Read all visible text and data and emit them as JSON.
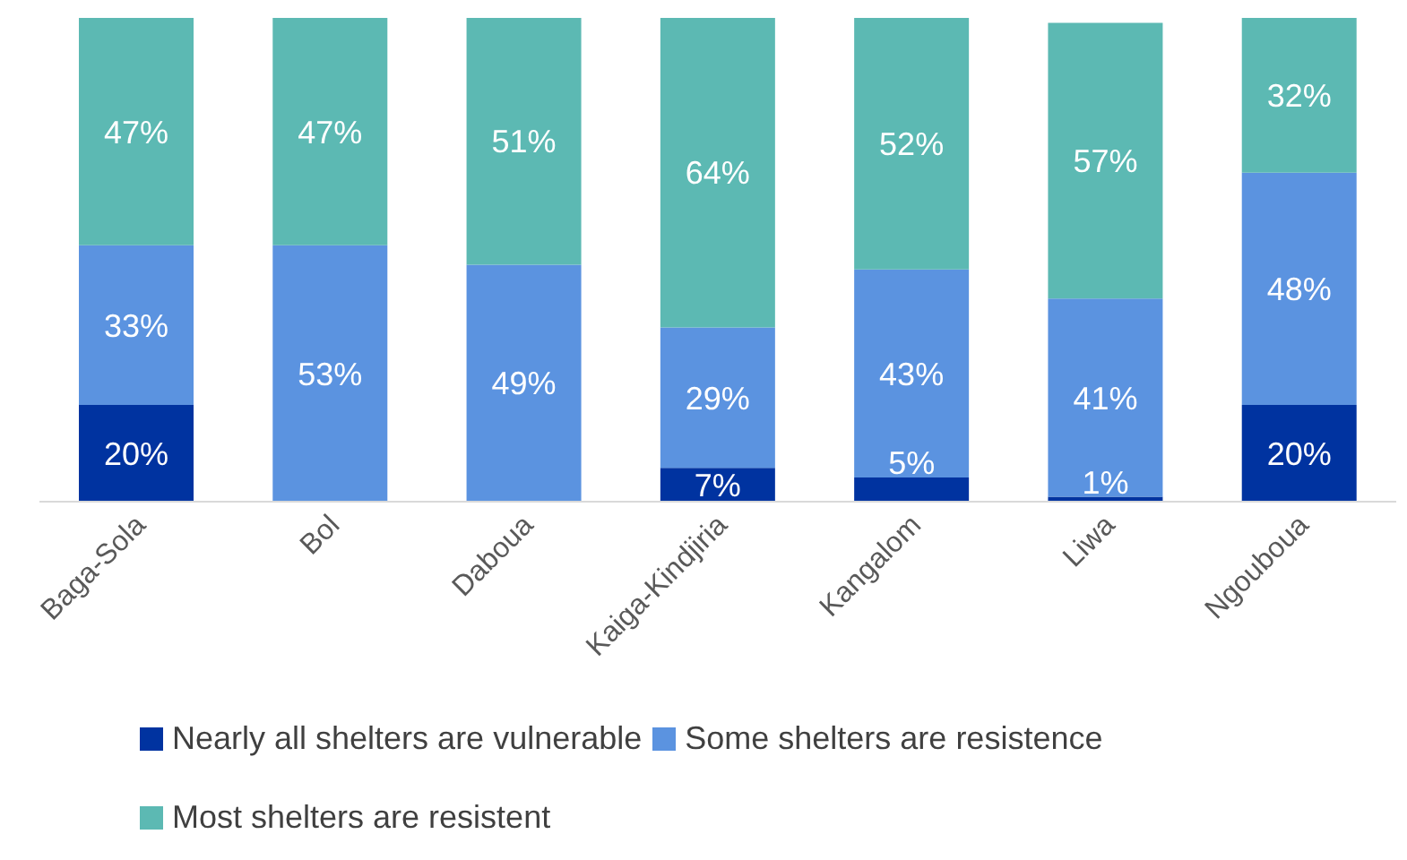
{
  "chart_data": {
    "type": "bar",
    "stacked": true,
    "tick_labels": "x",
    "legend": "bottom",
    "grid": false,
    "categories": [
      "Baga-Sola",
      "Bol",
      "Daboua",
      "Kaiga-Kindjiria",
      "Kangalom",
      "Liwa",
      "Ngouboua"
    ],
    "series": [
      {
        "name": "Nearly all shelters are vulnerable",
        "color": "#0033a0",
        "values": [
          20,
          null,
          null,
          7,
          5,
          1,
          20
        ],
        "value_labels": [
          "20%",
          null,
          null,
          "7%",
          "5%",
          "1%",
          "20%"
        ]
      },
      {
        "name": "Some shelters are resistence",
        "color": "#5b93e0",
        "values": [
          33,
          53,
          49,
          29,
          43,
          41,
          48
        ],
        "value_labels": [
          "33%",
          "53%",
          "49%",
          "29%",
          "43%",
          "41%",
          "48%"
        ]
      },
      {
        "name": "Most shelters are resistent",
        "color": "#5cb9b3",
        "values": [
          47,
          47,
          51,
          64,
          52,
          57,
          32
        ],
        "value_labels": [
          "47%",
          "47%",
          "51%",
          "64%",
          "52%",
          "57%",
          "32%"
        ]
      }
    ]
  }
}
